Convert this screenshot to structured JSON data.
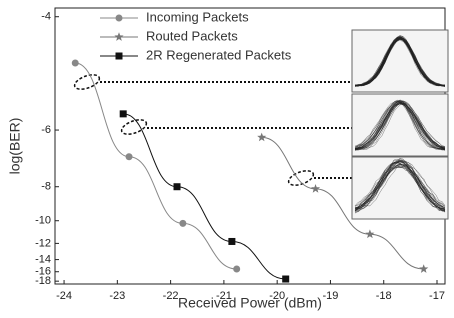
{
  "chart_data": {
    "type": "line",
    "x_label": "Received Power (dBm)",
    "y_label": "log(BER)",
    "xlim": [
      -24.17,
      -16.85
    ],
    "xticks": [
      -24,
      -23,
      -22,
      -21,
      -20,
      -19,
      -18,
      -17
    ],
    "ylim": [
      -3.9,
      -18.7
    ],
    "yticks": [
      -4,
      -6,
      -8,
      -10,
      -12,
      -14,
      -16,
      -18
    ],
    "yscale": "reciprocal",
    "series": [
      {
        "name": "Incoming Packets",
        "color": "#888888",
        "marker": "circle",
        "x": [
          -23.79,
          -22.78,
          -21.77,
          -20.76
        ],
        "values": [
          -4.63,
          -6.8,
          -10.2,
          -15.5
        ]
      },
      {
        "name": "Routed Packets",
        "color": "#777777",
        "marker": "star",
        "x": [
          -20.29,
          -19.28,
          -18.26,
          -17.25
        ],
        "values": [
          -6.2,
          -8.1,
          -11.1,
          -15.5
        ]
      },
      {
        "name": "2R Regenerated Packets",
        "color": "#111111",
        "marker": "square",
        "x": [
          -22.89,
          -21.88,
          -20.85,
          -19.84
        ],
        "values": [
          -5.6,
          -8.0,
          -11.8,
          -17.5
        ]
      }
    ]
  }
}
